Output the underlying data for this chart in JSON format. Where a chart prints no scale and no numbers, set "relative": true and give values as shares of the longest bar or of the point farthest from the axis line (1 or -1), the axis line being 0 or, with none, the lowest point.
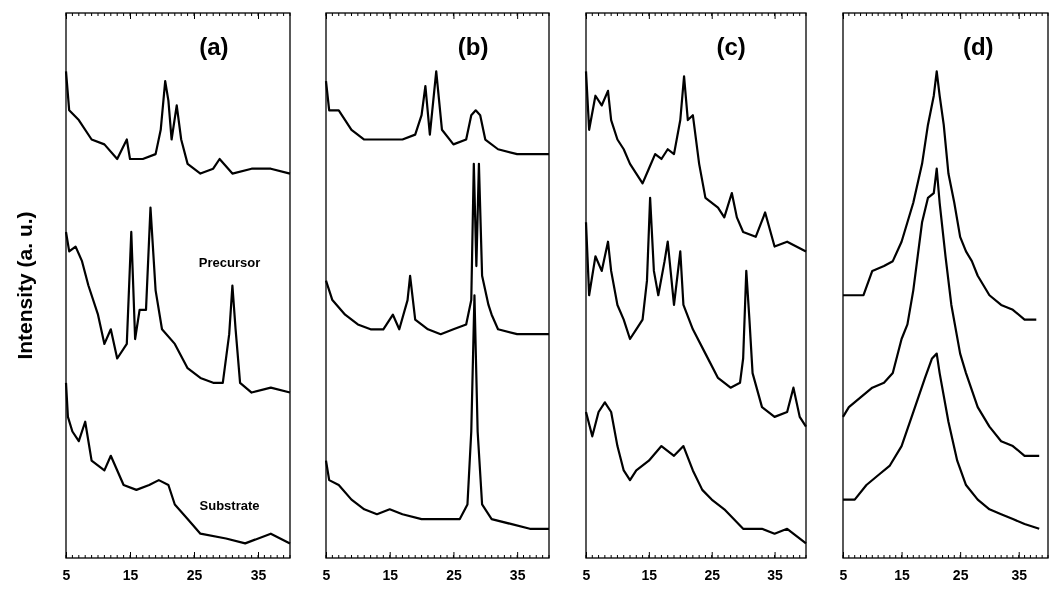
{
  "chart_data": [
    {
      "type": "line",
      "title": "(a)",
      "ylabel": "Intensity (a. u.)",
      "relative": true,
      "tick_labels": "x",
      "xlim": [
        5,
        40
      ],
      "xticks": [
        5,
        15,
        25,
        35
      ],
      "annotations": [
        "Precursor",
        "Substrate"
      ],
      "series": [
        {
          "color": "#000000",
          "x": [
            5,
            5.5,
            7,
            9,
            11,
            13,
            14.5,
            15,
            17,
            19,
            19.8,
            20.5,
            21,
            21.5,
            22.3,
            23,
            24,
            26,
            28,
            29,
            31,
            34,
            37,
            40
          ],
          "values": [
            1.0,
            0.92,
            0.9,
            0.86,
            0.85,
            0.82,
            0.86,
            0.82,
            0.82,
            0.83,
            0.88,
            0.98,
            0.94,
            0.86,
            0.93,
            0.86,
            0.81,
            0.79,
            0.8,
            0.82,
            0.79,
            0.8,
            0.8,
            0.79
          ]
        },
        {
          "color": "#000000",
          "x": [
            5,
            5.5,
            6.5,
            7.5,
            8.5,
            10,
            11,
            12,
            13,
            14.5,
            15.2,
            15.8,
            16.5,
            17.5,
            18.2,
            19,
            20,
            22,
            24,
            26,
            28,
            29.5,
            30.5,
            31,
            31.5,
            32.2,
            34,
            37,
            40
          ],
          "values": [
            0.67,
            0.63,
            0.64,
            0.61,
            0.56,
            0.5,
            0.44,
            0.47,
            0.41,
            0.44,
            0.67,
            0.45,
            0.51,
            0.51,
            0.72,
            0.55,
            0.47,
            0.44,
            0.39,
            0.37,
            0.36,
            0.36,
            0.46,
            0.56,
            0.47,
            0.36,
            0.34,
            0.35,
            0.34
          ]
        },
        {
          "color": "#000000",
          "x": [
            5,
            5.3,
            6,
            7,
            8,
            9,
            11,
            12,
            14,
            16,
            18,
            19.5,
            21,
            22,
            24,
            26,
            30,
            33,
            37,
            40
          ],
          "values": [
            0.36,
            0.29,
            0.26,
            0.24,
            0.28,
            0.2,
            0.18,
            0.21,
            0.15,
            0.14,
            0.15,
            0.16,
            0.15,
            0.11,
            0.08,
            0.05,
            0.04,
            0.03,
            0.05,
            0.03
          ]
        }
      ]
    },
    {
      "type": "line",
      "title": "(b)",
      "relative": true,
      "tick_labels": "x",
      "xlim": [
        5,
        40
      ],
      "xticks": [
        5,
        15,
        25,
        35
      ],
      "series": [
        {
          "color": "#000000",
          "x": [
            5,
            5.5,
            7,
            9,
            11,
            13,
            15,
            17,
            19,
            20,
            20.6,
            21.3,
            22.3,
            23.2,
            25,
            27,
            27.8,
            28.5,
            29.2,
            30,
            32,
            35,
            40
          ],
          "values": [
            0.98,
            0.92,
            0.92,
            0.88,
            0.86,
            0.86,
            0.86,
            0.86,
            0.87,
            0.91,
            0.97,
            0.87,
            1.0,
            0.88,
            0.85,
            0.86,
            0.91,
            0.92,
            0.91,
            0.86,
            0.84,
            0.83,
            0.83
          ]
        },
        {
          "color": "#000000",
          "x": [
            5,
            6,
            8,
            10,
            12,
            14,
            15.5,
            16.5,
            17.8,
            18.2,
            19,
            21,
            23,
            25,
            27,
            27.8,
            28.2,
            28.6,
            29,
            29.5,
            30.5,
            31,
            32,
            35,
            40
          ],
          "values": [
            0.57,
            0.53,
            0.5,
            0.48,
            0.47,
            0.47,
            0.5,
            0.47,
            0.53,
            0.58,
            0.49,
            0.47,
            0.46,
            0.47,
            0.48,
            0.53,
            0.81,
            0.6,
            0.81,
            0.58,
            0.52,
            0.5,
            0.47,
            0.46,
            0.46
          ]
        },
        {
          "color": "#000000",
          "x": [
            5,
            5.5,
            7,
            9,
            11,
            13,
            15,
            17,
            20,
            24,
            26,
            27.2,
            27.8,
            28.3,
            28.8,
            29.5,
            31,
            34,
            37,
            40
          ],
          "values": [
            0.2,
            0.16,
            0.15,
            0.12,
            0.1,
            0.09,
            0.1,
            0.09,
            0.08,
            0.08,
            0.08,
            0.11,
            0.26,
            0.54,
            0.26,
            0.11,
            0.08,
            0.07,
            0.06,
            0.06
          ]
        }
      ]
    },
    {
      "type": "line",
      "title": "(c)",
      "relative": true,
      "tick_labels": "x",
      "xlim": [
        5,
        40
      ],
      "xticks": [
        5,
        15,
        25,
        35
      ],
      "series": [
        {
          "color": "#000000",
          "x": [
            5,
            5.5,
            6.5,
            7.5,
            8.5,
            9,
            10,
            11,
            12,
            13,
            14,
            15,
            16,
            17,
            18,
            19,
            20,
            20.6,
            21.2,
            22,
            23,
            24,
            26,
            27,
            28.2,
            29,
            30,
            32,
            33.5,
            35,
            37,
            40
          ],
          "values": [
            1.0,
            0.88,
            0.95,
            0.93,
            0.96,
            0.9,
            0.86,
            0.84,
            0.81,
            0.79,
            0.77,
            0.8,
            0.83,
            0.82,
            0.84,
            0.83,
            0.9,
            0.99,
            0.9,
            0.91,
            0.81,
            0.74,
            0.72,
            0.7,
            0.75,
            0.7,
            0.67,
            0.66,
            0.71,
            0.64,
            0.65,
            0.63
          ]
        },
        {
          "color": "#000000",
          "x": [
            5,
            5.5,
            6.5,
            7.5,
            8.5,
            9,
            10,
            11,
            12,
            13,
            14,
            14.7,
            15.2,
            15.8,
            16.5,
            17.5,
            18,
            19,
            20,
            20.5,
            22,
            24,
            26,
            28,
            29.5,
            30,
            30.5,
            31,
            31.5,
            33,
            35,
            37,
            38,
            39,
            40
          ],
          "values": [
            0.69,
            0.54,
            0.62,
            0.59,
            0.65,
            0.59,
            0.52,
            0.49,
            0.45,
            0.47,
            0.49,
            0.57,
            0.74,
            0.59,
            0.54,
            0.61,
            0.65,
            0.52,
            0.63,
            0.52,
            0.47,
            0.42,
            0.37,
            0.35,
            0.36,
            0.41,
            0.59,
            0.49,
            0.38,
            0.31,
            0.29,
            0.3,
            0.35,
            0.29,
            0.27
          ]
        },
        {
          "color": "#000000",
          "x": [
            5,
            6,
            7,
            8,
            9,
            10,
            11,
            12,
            13,
            15,
            17,
            19,
            20.5,
            22,
            23.5,
            25,
            27,
            30,
            33,
            35,
            37,
            40
          ],
          "values": [
            0.3,
            0.25,
            0.3,
            0.32,
            0.3,
            0.23,
            0.18,
            0.16,
            0.18,
            0.2,
            0.23,
            0.21,
            0.23,
            0.18,
            0.14,
            0.12,
            0.1,
            0.06,
            0.06,
            0.05,
            0.06,
            0.03
          ]
        }
      ]
    },
    {
      "type": "line",
      "title": "(d)",
      "relative": true,
      "tick_labels": "x",
      "xlim": [
        5,
        40
      ],
      "xticks": [
        5,
        15,
        25,
        35
      ],
      "series": [
        {
          "color": "#000000",
          "x": [
            5,
            7,
            8.5,
            10,
            12,
            13.5,
            15,
            17,
            18.5,
            19.5,
            20.5,
            21,
            21.5,
            22.2,
            23,
            24,
            25,
            26,
            27,
            28,
            30,
            32,
            34,
            36,
            38
          ],
          "values": [
            0.54,
            0.54,
            0.54,
            0.59,
            0.6,
            0.61,
            0.65,
            0.73,
            0.81,
            0.89,
            0.95,
            1.0,
            0.95,
            0.89,
            0.79,
            0.73,
            0.66,
            0.63,
            0.61,
            0.58,
            0.54,
            0.52,
            0.51,
            0.49,
            0.49
          ]
        },
        {
          "color": "#000000",
          "x": [
            5,
            6,
            8,
            10,
            12,
            13.5,
            15,
            16,
            17,
            18.5,
            19.5,
            20.5,
            21,
            21.5,
            22.5,
            23.5,
            25,
            26,
            28,
            30,
            32,
            34,
            36,
            38.5
          ],
          "values": [
            0.29,
            0.31,
            0.33,
            0.35,
            0.36,
            0.38,
            0.45,
            0.48,
            0.55,
            0.69,
            0.74,
            0.75,
            0.8,
            0.73,
            0.62,
            0.52,
            0.42,
            0.38,
            0.31,
            0.27,
            0.24,
            0.23,
            0.21,
            0.21
          ]
        },
        {
          "color": "#000000",
          "x": [
            5,
            7,
            9,
            11,
            13,
            15,
            17,
            19,
            20.2,
            21,
            21.5,
            23,
            24.5,
            26,
            28,
            30,
            32,
            34,
            36,
            38.5
          ],
          "values": [
            0.12,
            0.12,
            0.15,
            0.17,
            0.19,
            0.23,
            0.3,
            0.37,
            0.41,
            0.42,
            0.38,
            0.28,
            0.2,
            0.15,
            0.12,
            0.1,
            0.09,
            0.08,
            0.07,
            0.06
          ]
        }
      ]
    }
  ]
}
